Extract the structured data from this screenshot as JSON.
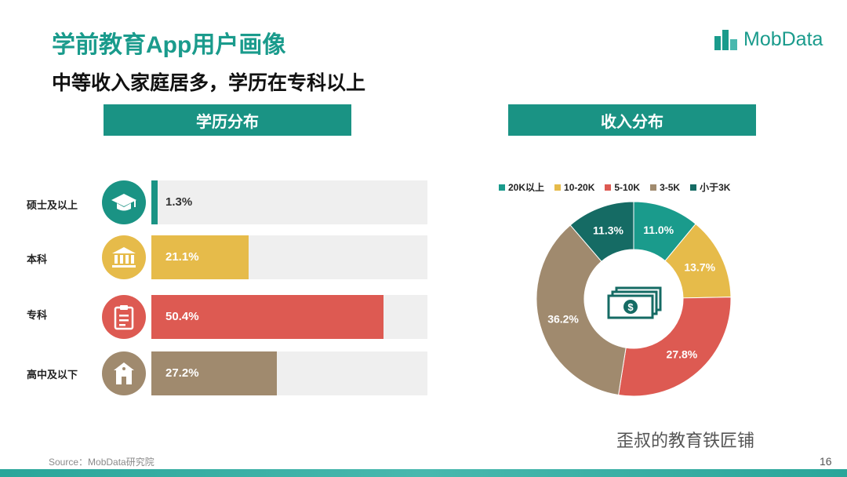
{
  "title": "学前教育App用户画像",
  "subtitle": "中等收入家庭居多，学历在专科以上",
  "logo": {
    "text": "MobData"
  },
  "sections": {
    "education": "学历分布",
    "income": "收入分布"
  },
  "education": [
    {
      "label": "硕士及以上",
      "pct_label": "1.3%",
      "value": 1.3,
      "color": "#1a9384",
      "icon": "graduation-cap-icon"
    },
    {
      "label": "本科",
      "pct_label": "21.1%",
      "value": 21.1,
      "color": "#e6bb4a",
      "icon": "university-building-icon"
    },
    {
      "label": "专科",
      "pct_label": "50.4%",
      "value": 50.4,
      "color": "#dd5a52",
      "icon": "clipboard-icon"
    },
    {
      "label": "高中及以下",
      "pct_label": "27.2%",
      "value": 27.2,
      "color": "#a08a6e",
      "icon": "school-house-icon"
    }
  ],
  "chart_data": [
    {
      "type": "bar",
      "categories": [
        "硕士及以上",
        "本科",
        "专科",
        "高中及以下"
      ],
      "values": [
        1.3,
        21.1,
        50.4,
        27.2
      ],
      "xlim": [
        0,
        60
      ]
    },
    {
      "type": "pie",
      "categories": [
        "20K以上",
        "10-20K",
        "5-10K",
        "3-5K",
        "小于3K"
      ],
      "values": [
        11.0,
        13.7,
        27.8,
        36.2,
        11.3
      ],
      "labels": [
        "11.0%",
        "13.7%",
        "27.8%",
        "36.2%",
        "11.3%"
      ],
      "colors": [
        "#1a9b8c",
        "#e6bb4a",
        "#dd5a52",
        "#a08a6e",
        "#156b64"
      ],
      "legend_position": "top"
    }
  ],
  "footer": {
    "source": "Source：MobData研究院",
    "watermark": "歪叔的教育铁匠铺",
    "page": "16"
  }
}
